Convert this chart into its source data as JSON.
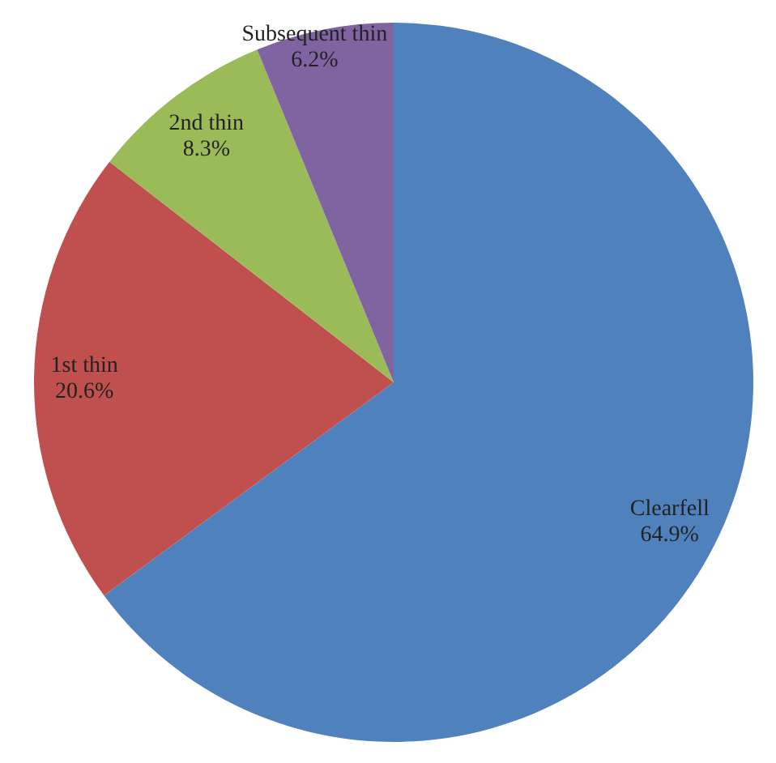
{
  "chart_data": {
    "type": "pie",
    "categories": [
      "Clearfell",
      "1st thin",
      "2nd thin",
      "Subsequent thin"
    ],
    "values": [
      64.9,
      20.6,
      8.3,
      6.2
    ],
    "colors": [
      "#4f81bd",
      "#c0504d",
      "#9bbb59",
      "#8064a2"
    ],
    "value_labels": [
      "64.9%",
      "20.6%",
      "8.3%",
      "6.2%"
    ]
  }
}
